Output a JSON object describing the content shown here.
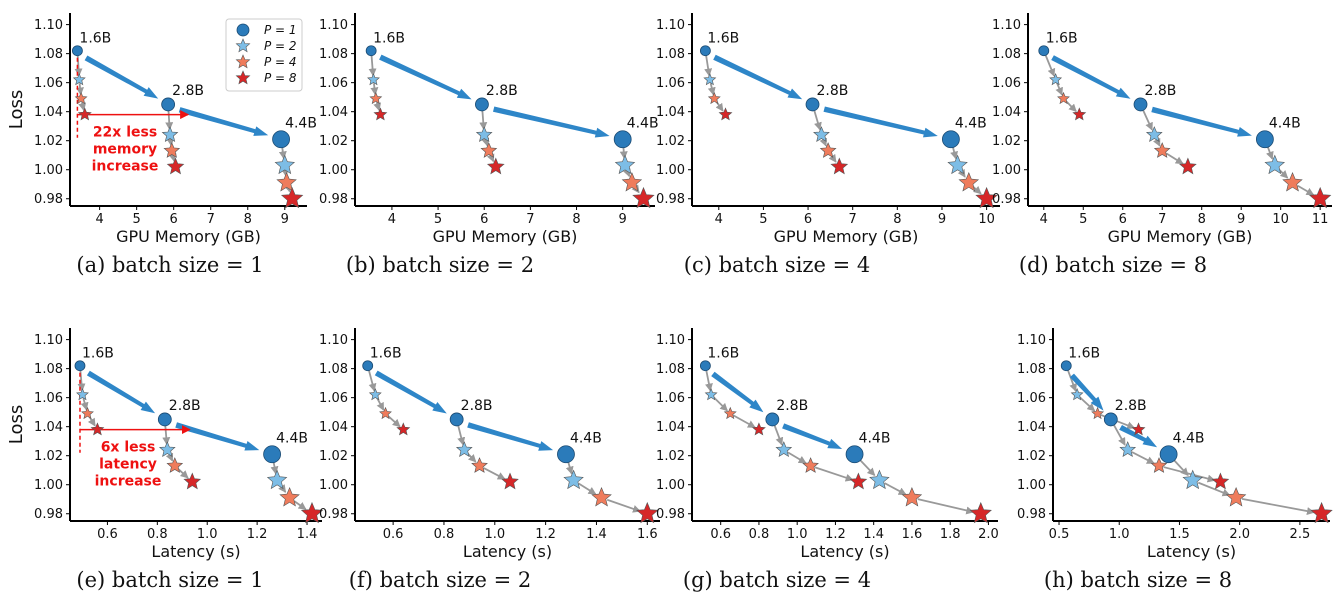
{
  "colors": {
    "P1": "#2b7bba",
    "P2": "#7dbde6",
    "P4": "#ef7c5c",
    "P8": "#d62728",
    "arrow_grey": "#999999",
    "arrow_blue": "#2e86c8",
    "annotation": "#ee1111"
  },
  "legend": [
    "P = 1",
    "P = 2",
    "P = 4",
    "P = 8"
  ],
  "models": [
    "1.6B",
    "2.8B",
    "4.4B"
  ],
  "chart_data": [
    {
      "type": "scatter",
      "id": "a",
      "caption": "(a)  batch size = 1",
      "xlabel": "GPU Memory (GB)",
      "ylabel": "Loss",
      "xlim": [
        3.2,
        9.6
      ],
      "ylim": [
        0.975,
        1.108
      ],
      "xticks": [
        "4",
        "5",
        "6",
        "7",
        "8",
        "9"
      ],
      "yticks": [
        "0.98",
        "1.00",
        "1.02",
        "1.04",
        "1.06",
        "1.08",
        "1.10"
      ],
      "loss": [
        [
          1.082,
          1.062,
          1.049,
          1.038
        ],
        [
          1.045,
          1.024,
          1.013,
          1.002
        ],
        [
          1.021,
          1.003,
          0.991,
          0.98
        ]
      ],
      "x": [
        [
          3.4,
          3.45,
          3.5,
          3.6
        ],
        [
          5.85,
          5.9,
          5.95,
          6.05
        ],
        [
          8.9,
          9.0,
          9.05,
          9.2
        ]
      ],
      "annotation": [
        "22x less",
        "memory",
        "increase"
      ],
      "legend_shown": true
    },
    {
      "type": "scatter",
      "id": "b",
      "caption": "(b)  batch size = 2",
      "xlabel": "GPU Memory (GB)",
      "ylabel": "",
      "xlim": [
        3.2,
        9.7
      ],
      "ylim": [
        0.975,
        1.108
      ],
      "xticks": [
        "4",
        "5",
        "6",
        "7",
        "8",
        "9"
      ],
      "yticks": [
        "0.98",
        "1.00",
        "1.02",
        "1.04",
        "1.06",
        "1.08",
        "1.10"
      ],
      "loss": [
        [
          1.082,
          1.062,
          1.049,
          1.038
        ],
        [
          1.045,
          1.024,
          1.013,
          1.002
        ],
        [
          1.021,
          1.003,
          0.991,
          0.98
        ]
      ],
      "x": [
        [
          3.55,
          3.6,
          3.65,
          3.75
        ],
        [
          5.95,
          6.0,
          6.1,
          6.25
        ],
        [
          9.0,
          9.05,
          9.2,
          9.45
        ]
      ]
    },
    {
      "type": "scatter",
      "id": "c",
      "caption": "(c)  batch size = 4",
      "xlabel": "GPU Memory (GB)",
      "ylabel": "",
      "xlim": [
        3.4,
        10.3
      ],
      "ylim": [
        0.975,
        1.108
      ],
      "xticks": [
        "4",
        "5",
        "6",
        "7",
        "8",
        "9",
        "10"
      ],
      "yticks": [
        "0.98",
        "1.00",
        "1.02",
        "1.04",
        "1.06",
        "1.08",
        "1.10"
      ],
      "loss": [
        [
          1.082,
          1.062,
          1.049,
          1.038
        ],
        [
          1.045,
          1.024,
          1.013,
          1.002
        ],
        [
          1.021,
          1.003,
          0.991,
          0.98
        ]
      ],
      "x": [
        [
          3.7,
          3.8,
          3.9,
          4.15
        ],
        [
          6.1,
          6.3,
          6.45,
          6.7
        ],
        [
          9.2,
          9.35,
          9.6,
          10.0
        ]
      ]
    },
    {
      "type": "scatter",
      "id": "d",
      "caption": "(d)  batch size = 8",
      "xlabel": "GPU Memory (GB)",
      "ylabel": "",
      "xlim": [
        3.6,
        11.3
      ],
      "ylim": [
        0.975,
        1.108
      ],
      "xticks": [
        "4",
        "5",
        "6",
        "7",
        "8",
        "9",
        "10",
        "11"
      ],
      "yticks": [
        "0.98",
        "1.00",
        "1.02",
        "1.04",
        "1.06",
        "1.08",
        "1.10"
      ],
      "loss": [
        [
          1.082,
          1.062,
          1.049,
          1.038
        ],
        [
          1.045,
          1.024,
          1.013,
          1.002
        ],
        [
          1.021,
          1.003,
          0.991,
          0.98
        ]
      ],
      "x": [
        [
          4.0,
          4.3,
          4.5,
          4.9
        ],
        [
          6.45,
          6.8,
          7.0,
          7.65
        ],
        [
          9.6,
          9.85,
          10.3,
          11.0
        ]
      ]
    },
    {
      "type": "scatter",
      "id": "e",
      "caption": "(e)  batch size = 1",
      "xlabel": "Latency (s)",
      "ylabel": "Loss",
      "xlim": [
        0.45,
        1.46
      ],
      "ylim": [
        0.975,
        1.108
      ],
      "xticks": [
        "0.6",
        "0.8",
        "1.0",
        "1.2",
        "1.4"
      ],
      "yticks": [
        "0.98",
        "1.00",
        "1.02",
        "1.04",
        "1.06",
        "1.08",
        "1.10"
      ],
      "loss": [
        [
          1.082,
          1.062,
          1.049,
          1.038
        ],
        [
          1.045,
          1.024,
          1.013,
          1.002
        ],
        [
          1.021,
          1.003,
          0.991,
          0.98
        ]
      ],
      "x": [
        [
          0.49,
          0.5,
          0.52,
          0.56
        ],
        [
          0.83,
          0.84,
          0.87,
          0.94
        ],
        [
          1.26,
          1.28,
          1.33,
          1.42
        ]
      ],
      "annotation": [
        "6x less",
        "latency",
        "increase"
      ]
    },
    {
      "type": "scatter",
      "id": "f",
      "caption": "(f)  batch size = 2",
      "xlabel": "Latency (s)",
      "ylabel": "",
      "xlim": [
        0.45,
        1.65
      ],
      "ylim": [
        0.975,
        1.108
      ],
      "xticks": [
        "0.6",
        "0.8",
        "1.0",
        "1.2",
        "1.4",
        "1.6"
      ],
      "yticks": [
        "0.98",
        "1.00",
        "1.02",
        "1.04",
        "1.06",
        "1.08",
        "1.10"
      ],
      "loss": [
        [
          1.082,
          1.062,
          1.049,
          1.038
        ],
        [
          1.045,
          1.024,
          1.013,
          1.002
        ],
        [
          1.021,
          1.003,
          0.991,
          0.98
        ]
      ],
      "x": [
        [
          0.5,
          0.53,
          0.57,
          0.64
        ],
        [
          0.85,
          0.88,
          0.94,
          1.06
        ],
        [
          1.28,
          1.31,
          1.42,
          1.6
        ]
      ]
    },
    {
      "type": "scatter",
      "id": "g",
      "caption": "(g)  batch size = 4",
      "xlabel": "Latency (s)",
      "ylabel": "",
      "xlim": [
        0.45,
        2.05
      ],
      "ylim": [
        0.975,
        1.108
      ],
      "xticks": [
        "0.6",
        "0.8",
        "1.0",
        "1.2",
        "1.4",
        "1.6",
        "1.8",
        "2.0"
      ],
      "yticks": [
        "0.98",
        "1.00",
        "1.02",
        "1.04",
        "1.06",
        "1.08",
        "1.10"
      ],
      "loss": [
        [
          1.082,
          1.062,
          1.049,
          1.038
        ],
        [
          1.045,
          1.024,
          1.013,
          1.002
        ],
        [
          1.021,
          1.003,
          0.991,
          0.98
        ]
      ],
      "x": [
        [
          0.52,
          0.55,
          0.65,
          0.8
        ],
        [
          0.87,
          0.93,
          1.07,
          1.32
        ],
        [
          1.3,
          1.43,
          1.6,
          1.96
        ]
      ]
    },
    {
      "type": "scatter",
      "id": "h",
      "caption": "(h)  batch size = 8",
      "xlabel": "Latency (s)",
      "ylabel": "",
      "xlim": [
        0.45,
        2.75
      ],
      "ylim": [
        0.975,
        1.108
      ],
      "xticks": [
        "0.5",
        "1.0",
        "1.5",
        "2.0",
        "2.5"
      ],
      "yticks": [
        "0.98",
        "1.00",
        "1.02",
        "1.04",
        "1.06",
        "1.08",
        "1.10"
      ],
      "loss": [
        [
          1.082,
          1.062,
          1.049,
          1.038
        ],
        [
          1.045,
          1.024,
          1.013,
          1.002
        ],
        [
          1.021,
          1.003,
          0.991,
          0.98
        ]
      ],
      "x": [
        [
          0.56,
          0.65,
          0.82,
          1.16
        ],
        [
          0.93,
          1.07,
          1.33,
          1.84
        ],
        [
          1.41,
          1.61,
          1.97,
          2.68
        ]
      ]
    }
  ]
}
